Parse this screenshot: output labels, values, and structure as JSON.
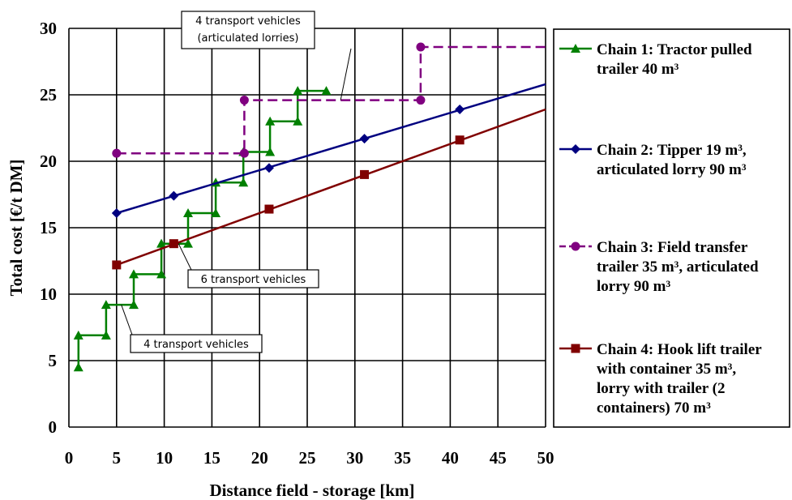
{
  "chart_data": {
    "type": "line",
    "xlabel": "Distance field - storage [km]",
    "ylabel": "Total cost [€/t DM]",
    "xlim": [
      0,
      50
    ],
    "ylim": [
      0,
      30
    ],
    "xticks": [
      0,
      5,
      10,
      15,
      20,
      25,
      30,
      35,
      40,
      45,
      50
    ],
    "yticks": [
      0,
      5,
      10,
      15,
      20,
      25,
      30
    ],
    "grid": true,
    "legend_position": "right",
    "series": [
      {
        "name": "Chain 1: Tractor pulled trailer 40 m³",
        "color": "#008000",
        "marker": "triangle",
        "line": "step",
        "markers": [
          {
            "x": 1,
            "y": 4.5
          },
          {
            "x": 1,
            "y": 6.9
          },
          {
            "x": 3.9,
            "y": 6.9
          },
          {
            "x": 3.9,
            "y": 9.2
          },
          {
            "x": 6.8,
            "y": 9.2
          },
          {
            "x": 6.8,
            "y": 11.5
          },
          {
            "x": 9.7,
            "y": 11.5
          },
          {
            "x": 9.7,
            "y": 13.8
          },
          {
            "x": 12.5,
            "y": 13.8
          },
          {
            "x": 12.5,
            "y": 16.1
          },
          {
            "x": 15.4,
            "y": 16.1
          },
          {
            "x": 15.4,
            "y": 18.4
          },
          {
            "x": 18.3,
            "y": 18.4
          },
          {
            "x": 18.3,
            "y": 20.7
          },
          {
            "x": 21.1,
            "y": 20.7
          },
          {
            "x": 21.1,
            "y": 23.0
          },
          {
            "x": 24.0,
            "y": 23.0
          },
          {
            "x": 24.0,
            "y": 25.3
          },
          {
            "x": 27.0,
            "y": 25.3
          }
        ]
      },
      {
        "name": "Chain 2: Tipper 19 m³, articulated lorry 90 m³",
        "color": "#000080",
        "marker": "diamond",
        "line": "solid",
        "line_from": {
          "x": 5,
          "y": 16.1
        },
        "line_to": {
          "x": 50,
          "y": 25.8
        },
        "markers": [
          {
            "x": 5,
            "y": 16.1
          },
          {
            "x": 11,
            "y": 17.4
          },
          {
            "x": 21,
            "y": 19.5
          },
          {
            "x": 31,
            "y": 21.7
          },
          {
            "x": 41,
            "y": 23.9
          }
        ]
      },
      {
        "name": "Chain 3: Field transfer trailer 35 m³, articulated lorry 90 m³",
        "color": "#800080",
        "marker": "circle",
        "line": "dashed-step",
        "path": [
          {
            "x": 5,
            "y": 20.6
          },
          {
            "x": 18.4,
            "y": 20.6
          },
          {
            "x": 18.4,
            "y": 24.6
          },
          {
            "x": 36.9,
            "y": 24.6
          },
          {
            "x": 36.9,
            "y": 28.6
          },
          {
            "x": 50,
            "y": 28.6
          }
        ],
        "markers": [
          {
            "x": 5,
            "y": 20.6
          },
          {
            "x": 18.4,
            "y": 20.6
          },
          {
            "x": 18.4,
            "y": 24.6
          },
          {
            "x": 36.9,
            "y": 24.6
          },
          {
            "x": 36.9,
            "y": 28.6
          }
        ]
      },
      {
        "name": "Chain 4: Hook lift trailer with container 35 m³, lorry with trailer (2 containers) 70 m³",
        "color": "#800000",
        "marker": "square",
        "line": "solid",
        "line_from": {
          "x": 5,
          "y": 12.2
        },
        "line_to": {
          "x": 50,
          "y": 23.9
        },
        "markers": [
          {
            "x": 5,
            "y": 12.2
          },
          {
            "x": 11,
            "y": 13.8
          },
          {
            "x": 21,
            "y": 16.4
          },
          {
            "x": 31,
            "y": 19.0
          },
          {
            "x": 41,
            "y": 21.6
          }
        ]
      }
    ],
    "legend_lines": [
      [
        "Chain 1: Tractor pulled",
        "trailer 40 m³"
      ],
      [
        "Chain 2: Tipper 19 m³,",
        "articulated lorry 90 m³"
      ],
      [
        "Chain 3: Field transfer",
        "trailer 35 m³, articulated",
        "lorry 90 m³"
      ],
      [
        "Chain 4: Hook lift trailer",
        "with container 35 m³,",
        "lorry with trailer (2",
        "containers) 70 m³"
      ]
    ],
    "annotations": [
      {
        "lines": [
          "4 transport vehicles",
          "(articulated lorries)"
        ],
        "target": {
          "x": 28.5,
          "y": 24.6
        }
      },
      {
        "lines": [
          "6 transport vehicles"
        ],
        "target": {
          "x": 11.5,
          "y": 13.8
        }
      },
      {
        "lines": [
          "4 transport vehicles"
        ],
        "target": {
          "x": 5.5,
          "y": 9.2
        }
      }
    ]
  }
}
